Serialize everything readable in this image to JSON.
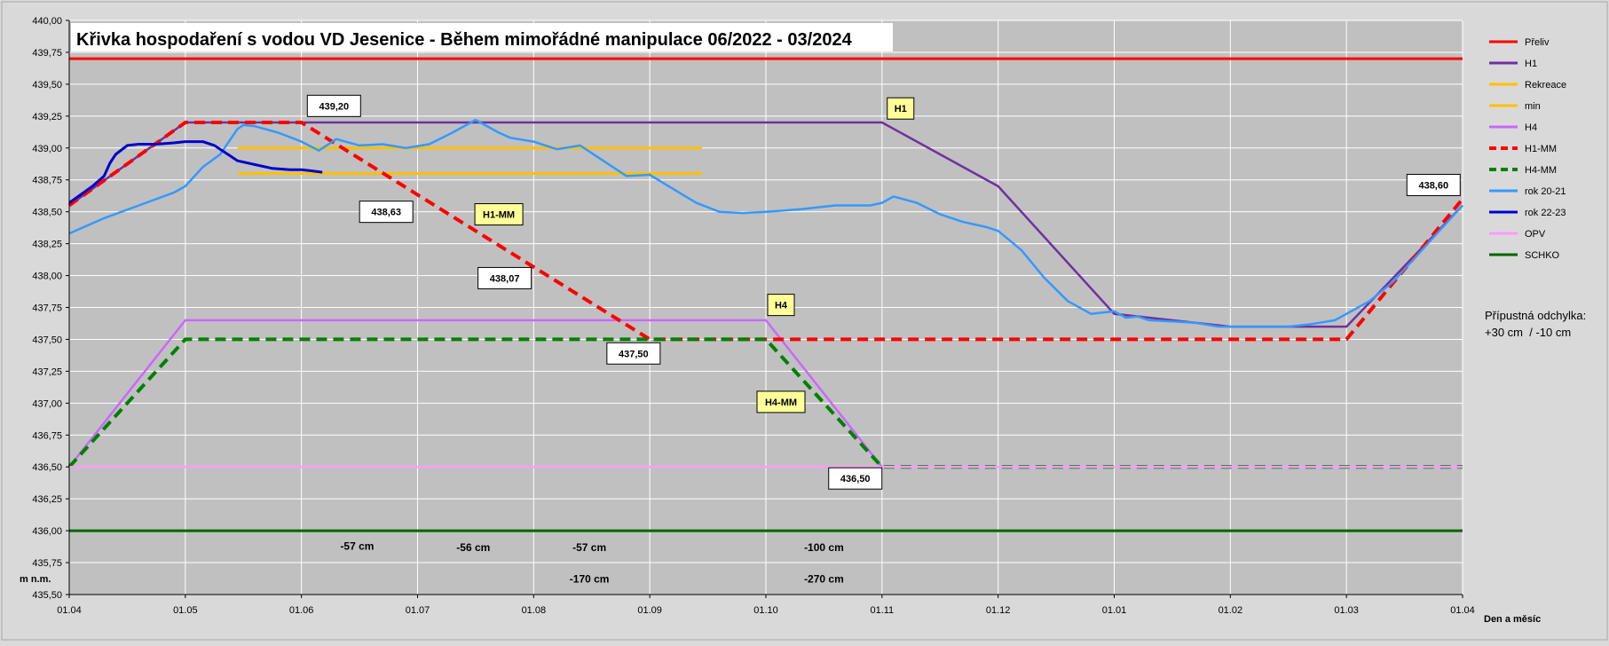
{
  "chart_data": {
    "type": "line",
    "title": "Křivka hospodaření s vodou VD Jesenice - Během mimořádné manipulace 06/2022 - 03/2024",
    "ylabel": "m n.m.",
    "xlabel": "Den a měsíc",
    "ylim": [
      435.5,
      440.0
    ],
    "y_ticks": [
      "435,50",
      "435,75",
      "436,00",
      "436,25",
      "436,50",
      "436,75",
      "437,00",
      "437,25",
      "437,50",
      "437,75",
      "438,00",
      "438,25",
      "438,50",
      "438,75",
      "439,00",
      "439,25",
      "439,50",
      "439,75",
      "440,00"
    ],
    "x_ticks": [
      "01.04",
      "01.05",
      "01.06",
      "01.07",
      "01.08",
      "01.09",
      "01.10",
      "01.11",
      "01.12",
      "01.01",
      "01.02",
      "01.03",
      "01.04"
    ],
    "x_range_months": [
      0,
      12
    ],
    "grid": true,
    "legend_position": "right",
    "note_lines": [
      "Přípustná odchylka:",
      "+30 cm  / -10 cm"
    ],
    "series": [
      {
        "name": "Přeliv",
        "color": "#ff0000",
        "dash": "solid",
        "x": [
          0,
          12
        ],
        "y": [
          439.7,
          439.7
        ]
      },
      {
        "name": "H1",
        "color": "#7030a0",
        "dash": "solid",
        "x": [
          0,
          1,
          7,
          8,
          9,
          10,
          11,
          12
        ],
        "y": [
          438.55,
          439.2,
          439.2,
          438.7,
          437.7,
          437.6,
          437.6,
          438.55
        ]
      },
      {
        "name": "Rekreace",
        "color": "#ffc000",
        "dash": "solid",
        "x": [
          1.45,
          5.45
        ],
        "y": [
          439.0,
          439.0
        ]
      },
      {
        "name": "min",
        "color": "#ffc000",
        "dash": "solid",
        "x": [
          1.45,
          5.45
        ],
        "y": [
          438.8,
          438.8
        ]
      },
      {
        "name": "H4",
        "color": "#cc66ff",
        "dash": "solid",
        "x": [
          0,
          1,
          6,
          7,
          12
        ],
        "y": [
          436.5,
          437.65,
          437.65,
          436.5,
          436.5
        ]
      },
      {
        "name": "H1-MM",
        "color": "#ff0000",
        "dash": "dashed",
        "x": [
          0,
          1,
          2,
          5,
          11,
          12
        ],
        "y": [
          438.55,
          439.2,
          439.2,
          437.5,
          437.5,
          438.6
        ]
      },
      {
        "name": "H4-MM",
        "color": "#008000",
        "dash": "dashed",
        "x": [
          0,
          1,
          6,
          7,
          12
        ],
        "y": [
          436.5,
          437.5,
          437.5,
          436.5,
          436.5
        ]
      },
      {
        "name": "rok 20-21",
        "color": "#3399ff",
        "dash": "solid",
        "x": [
          0,
          0.3,
          0.6,
          0.9,
          1.0,
          1.15,
          1.3,
          1.45,
          1.5,
          1.6,
          1.8,
          2.0,
          2.15,
          2.3,
          2.5,
          2.7,
          2.9,
          3.1,
          3.3,
          3.5,
          3.7,
          3.8,
          4.0,
          4.2,
          4.4,
          4.6,
          4.8,
          5.0,
          5.2,
          5.4,
          5.6,
          5.8,
          6.0,
          6.3,
          6.6,
          6.9,
          7.0,
          7.1,
          7.3,
          7.5,
          7.7,
          7.9,
          8.0,
          8.2,
          8.4,
          8.6,
          8.8,
          9.0,
          9.1,
          9.2,
          9.3,
          9.5,
          9.7,
          9.9,
          10.1,
          10.3,
          10.5,
          10.7,
          10.9,
          11.0,
          11.2,
          11.4,
          11.6,
          11.8,
          12.0
        ],
        "y": [
          438.33,
          438.45,
          438.55,
          438.65,
          438.7,
          438.85,
          438.95,
          439.15,
          439.18,
          439.17,
          439.12,
          439.05,
          438.98,
          439.07,
          439.02,
          439.03,
          439.0,
          439.03,
          439.12,
          439.22,
          439.12,
          439.08,
          439.05,
          438.99,
          439.02,
          438.9,
          438.78,
          438.79,
          438.68,
          438.57,
          438.5,
          438.49,
          438.5,
          438.52,
          438.55,
          438.55,
          438.57,
          438.62,
          438.57,
          438.48,
          438.42,
          438.38,
          438.35,
          438.2,
          437.98,
          437.8,
          437.7,
          437.72,
          437.67,
          437.68,
          437.65,
          437.64,
          437.63,
          437.6,
          437.6,
          437.6,
          437.6,
          437.62,
          437.65,
          437.7,
          437.8,
          437.95,
          438.15,
          438.35,
          438.55
        ]
      },
      {
        "name": "rok 22-23",
        "color": "#0000cc",
        "dash": "solid",
        "x": [
          0,
          0.2,
          0.3,
          0.35,
          0.4,
          0.5,
          0.6,
          0.75,
          0.9,
          1.0,
          1.15,
          1.25,
          1.35,
          1.45,
          1.6,
          1.75,
          1.9,
          2.0,
          2.1,
          2.18
        ],
        "y": [
          438.57,
          438.7,
          438.78,
          438.88,
          438.95,
          439.02,
          439.03,
          439.03,
          439.04,
          439.05,
          439.05,
          439.02,
          438.96,
          438.9,
          438.87,
          438.84,
          438.83,
          438.83,
          438.82,
          438.81
        ]
      },
      {
        "name": "OPV",
        "color": "#ff99ff",
        "dash": "solid",
        "x": [
          0,
          12
        ],
        "y": [
          436.5,
          436.5
        ]
      },
      {
        "name": "SCHKO",
        "color": "#006600",
        "dash": "solid",
        "x": [
          0,
          12
        ],
        "y": [
          436.0,
          436.0
        ]
      }
    ],
    "annotations": [
      {
        "text": "439,20",
        "x": 2.28,
        "y": 439.33,
        "style": "value"
      },
      {
        "text": "438,63",
        "x": 2.73,
        "y": 438.5,
        "style": "value"
      },
      {
        "text": "438,07",
        "x": 3.75,
        "y": 437.98,
        "style": "value"
      },
      {
        "text": "437,50",
        "x": 4.86,
        "y": 437.39,
        "style": "value"
      },
      {
        "text": "436,50",
        "x": 6.77,
        "y": 436.41,
        "style": "value"
      },
      {
        "text": "438,60",
        "x": 11.75,
        "y": 438.71,
        "style": "value"
      },
      {
        "text": "H1",
        "x": 7.16,
        "y": 439.31,
        "style": "tag"
      },
      {
        "text": "H1-MM",
        "x": 3.7,
        "y": 438.48,
        "style": "tag"
      },
      {
        "text": "H4",
        "x": 6.13,
        "y": 437.77,
        "style": "tag"
      },
      {
        "text": "H4-MM",
        "x": 6.13,
        "y": 437.01,
        "style": "tag"
      },
      {
        "text": "-57 cm",
        "x": 2.48,
        "y": 435.88,
        "style": "plain"
      },
      {
        "text": "-56 cm",
        "x": 3.48,
        "y": 435.87,
        "style": "plain"
      },
      {
        "text": "-57 cm",
        "x": 4.48,
        "y": 435.87,
        "style": "plain"
      },
      {
        "text": "-100 cm",
        "x": 6.5,
        "y": 435.87,
        "style": "plain"
      },
      {
        "text": "-170 cm",
        "x": 4.48,
        "y": 435.62,
        "style": "plain"
      },
      {
        "text": "-270 cm",
        "x": 6.5,
        "y": 435.62,
        "style": "plain"
      }
    ]
  }
}
